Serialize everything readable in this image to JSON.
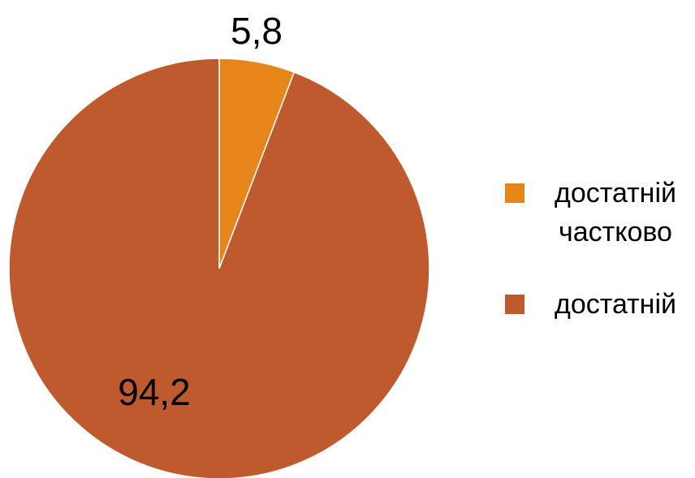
{
  "chart_data": {
    "type": "pie",
    "categories": [
      "достатній частково",
      "достатній"
    ],
    "values": [
      5.8,
      94.2
    ],
    "value_labels": [
      "5,8",
      "94,2"
    ],
    "colors": [
      "#e6851a",
      "#be5a2e"
    ],
    "legend": "right"
  }
}
